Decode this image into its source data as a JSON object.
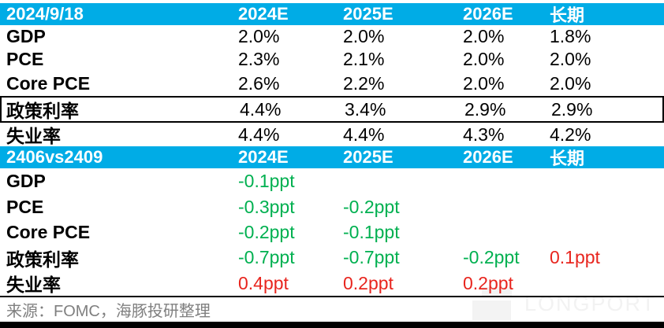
{
  "colors": {
    "header_bg": "#00ACE6",
    "green": "#00B050",
    "red": "#E8251E",
    "source_gray": "#7F7F7F"
  },
  "table1": {
    "title": "2024/9/18",
    "columns": [
      "2024E",
      "2025E",
      "2026E",
      "长期"
    ],
    "rows": [
      {
        "label": "GDP",
        "values": [
          "2.0%",
          "2.0%",
          "2.0%",
          "1.8%"
        ]
      },
      {
        "label": "PCE",
        "values": [
          "2.3%",
          "2.1%",
          "2.0%",
          "2.0%"
        ]
      },
      {
        "label": "Core PCE",
        "values": [
          "2.6%",
          "2.2%",
          "2.0%",
          "2.0%"
        ]
      },
      {
        "label": "政策利率",
        "values": [
          "4.4%",
          "3.4%",
          "2.9%",
          "2.9%"
        ],
        "boxed": true
      },
      {
        "label": "失业率",
        "values": [
          "4.4%",
          "4.4%",
          "4.3%",
          "4.2%"
        ]
      }
    ]
  },
  "table2": {
    "title": "2406vs2409",
    "columns": [
      "2024E",
      "2025E",
      "2026E",
      "长期"
    ],
    "rows": [
      {
        "label": "GDP",
        "values": [
          {
            "text": "-0.1ppt",
            "color": "green"
          },
          null,
          null,
          null
        ]
      },
      {
        "label": "PCE",
        "values": [
          {
            "text": "-0.3ppt",
            "color": "green"
          },
          {
            "text": "-0.2ppt",
            "color": "green"
          },
          null,
          null
        ]
      },
      {
        "label": "Core PCE",
        "values": [
          {
            "text": "-0.2ppt",
            "color": "green"
          },
          {
            "text": "-0.1ppt",
            "color": "green"
          },
          null,
          null
        ]
      },
      {
        "label": "政策利率",
        "values": [
          {
            "text": "-0.7ppt",
            "color": "green"
          },
          {
            "text": "-0.7ppt",
            "color": "green"
          },
          {
            "text": "-0.2ppt",
            "color": "green"
          },
          {
            "text": "0.1ppt",
            "color": "red"
          }
        ]
      },
      {
        "label": "失业率",
        "values": [
          {
            "text": "0.4ppt",
            "color": "red"
          },
          {
            "text": "0.2ppt",
            "color": "red"
          },
          {
            "text": "0.2ppt",
            "color": "red"
          },
          null
        ]
      }
    ]
  },
  "footer": {
    "source": "来源：FOMC，海豚投研整理"
  },
  "watermark": {
    "text": "LONGPORT"
  },
  "chart_data": [
    {
      "type": "table",
      "title": "2024/9/18 FOMC SEP 预测",
      "columns": [
        "2024/9/18",
        "2024E",
        "2025E",
        "2026E",
        "长期"
      ],
      "rows": [
        [
          "GDP",
          "2.0%",
          "2.0%",
          "2.0%",
          "1.8%"
        ],
        [
          "PCE",
          "2.3%",
          "2.1%",
          "2.0%",
          "2.0%"
        ],
        [
          "Core PCE",
          "2.6%",
          "2.2%",
          "2.0%",
          "2.0%"
        ],
        [
          "政策利率",
          "4.4%",
          "3.4%",
          "2.9%",
          "2.9%"
        ],
        [
          "失业率",
          "4.4%",
          "4.4%",
          "4.3%",
          "4.2%"
        ]
      ],
      "notes": "政策利率行带黑色边框突出显示"
    },
    {
      "type": "table",
      "title": "2406vs2409 预测变化",
      "columns": [
        "2406vs2409",
        "2024E",
        "2025E",
        "2026E",
        "长期"
      ],
      "rows": [
        [
          "GDP",
          "-0.1ppt",
          "",
          "",
          ""
        ],
        [
          "PCE",
          "-0.3ppt",
          "-0.2ppt",
          "",
          ""
        ],
        [
          "Core PCE",
          "-0.2ppt",
          "-0.1ppt",
          "",
          ""
        ],
        [
          "政策利率",
          "-0.7ppt",
          "-0.7ppt",
          "-0.2ppt",
          "0.1ppt"
        ],
        [
          "失业率",
          "0.4ppt",
          "0.2ppt",
          "0.2ppt",
          ""
        ]
      ],
      "notes": "负值为绿色，正值为红色；长期列0.1ppt为红色"
    }
  ]
}
